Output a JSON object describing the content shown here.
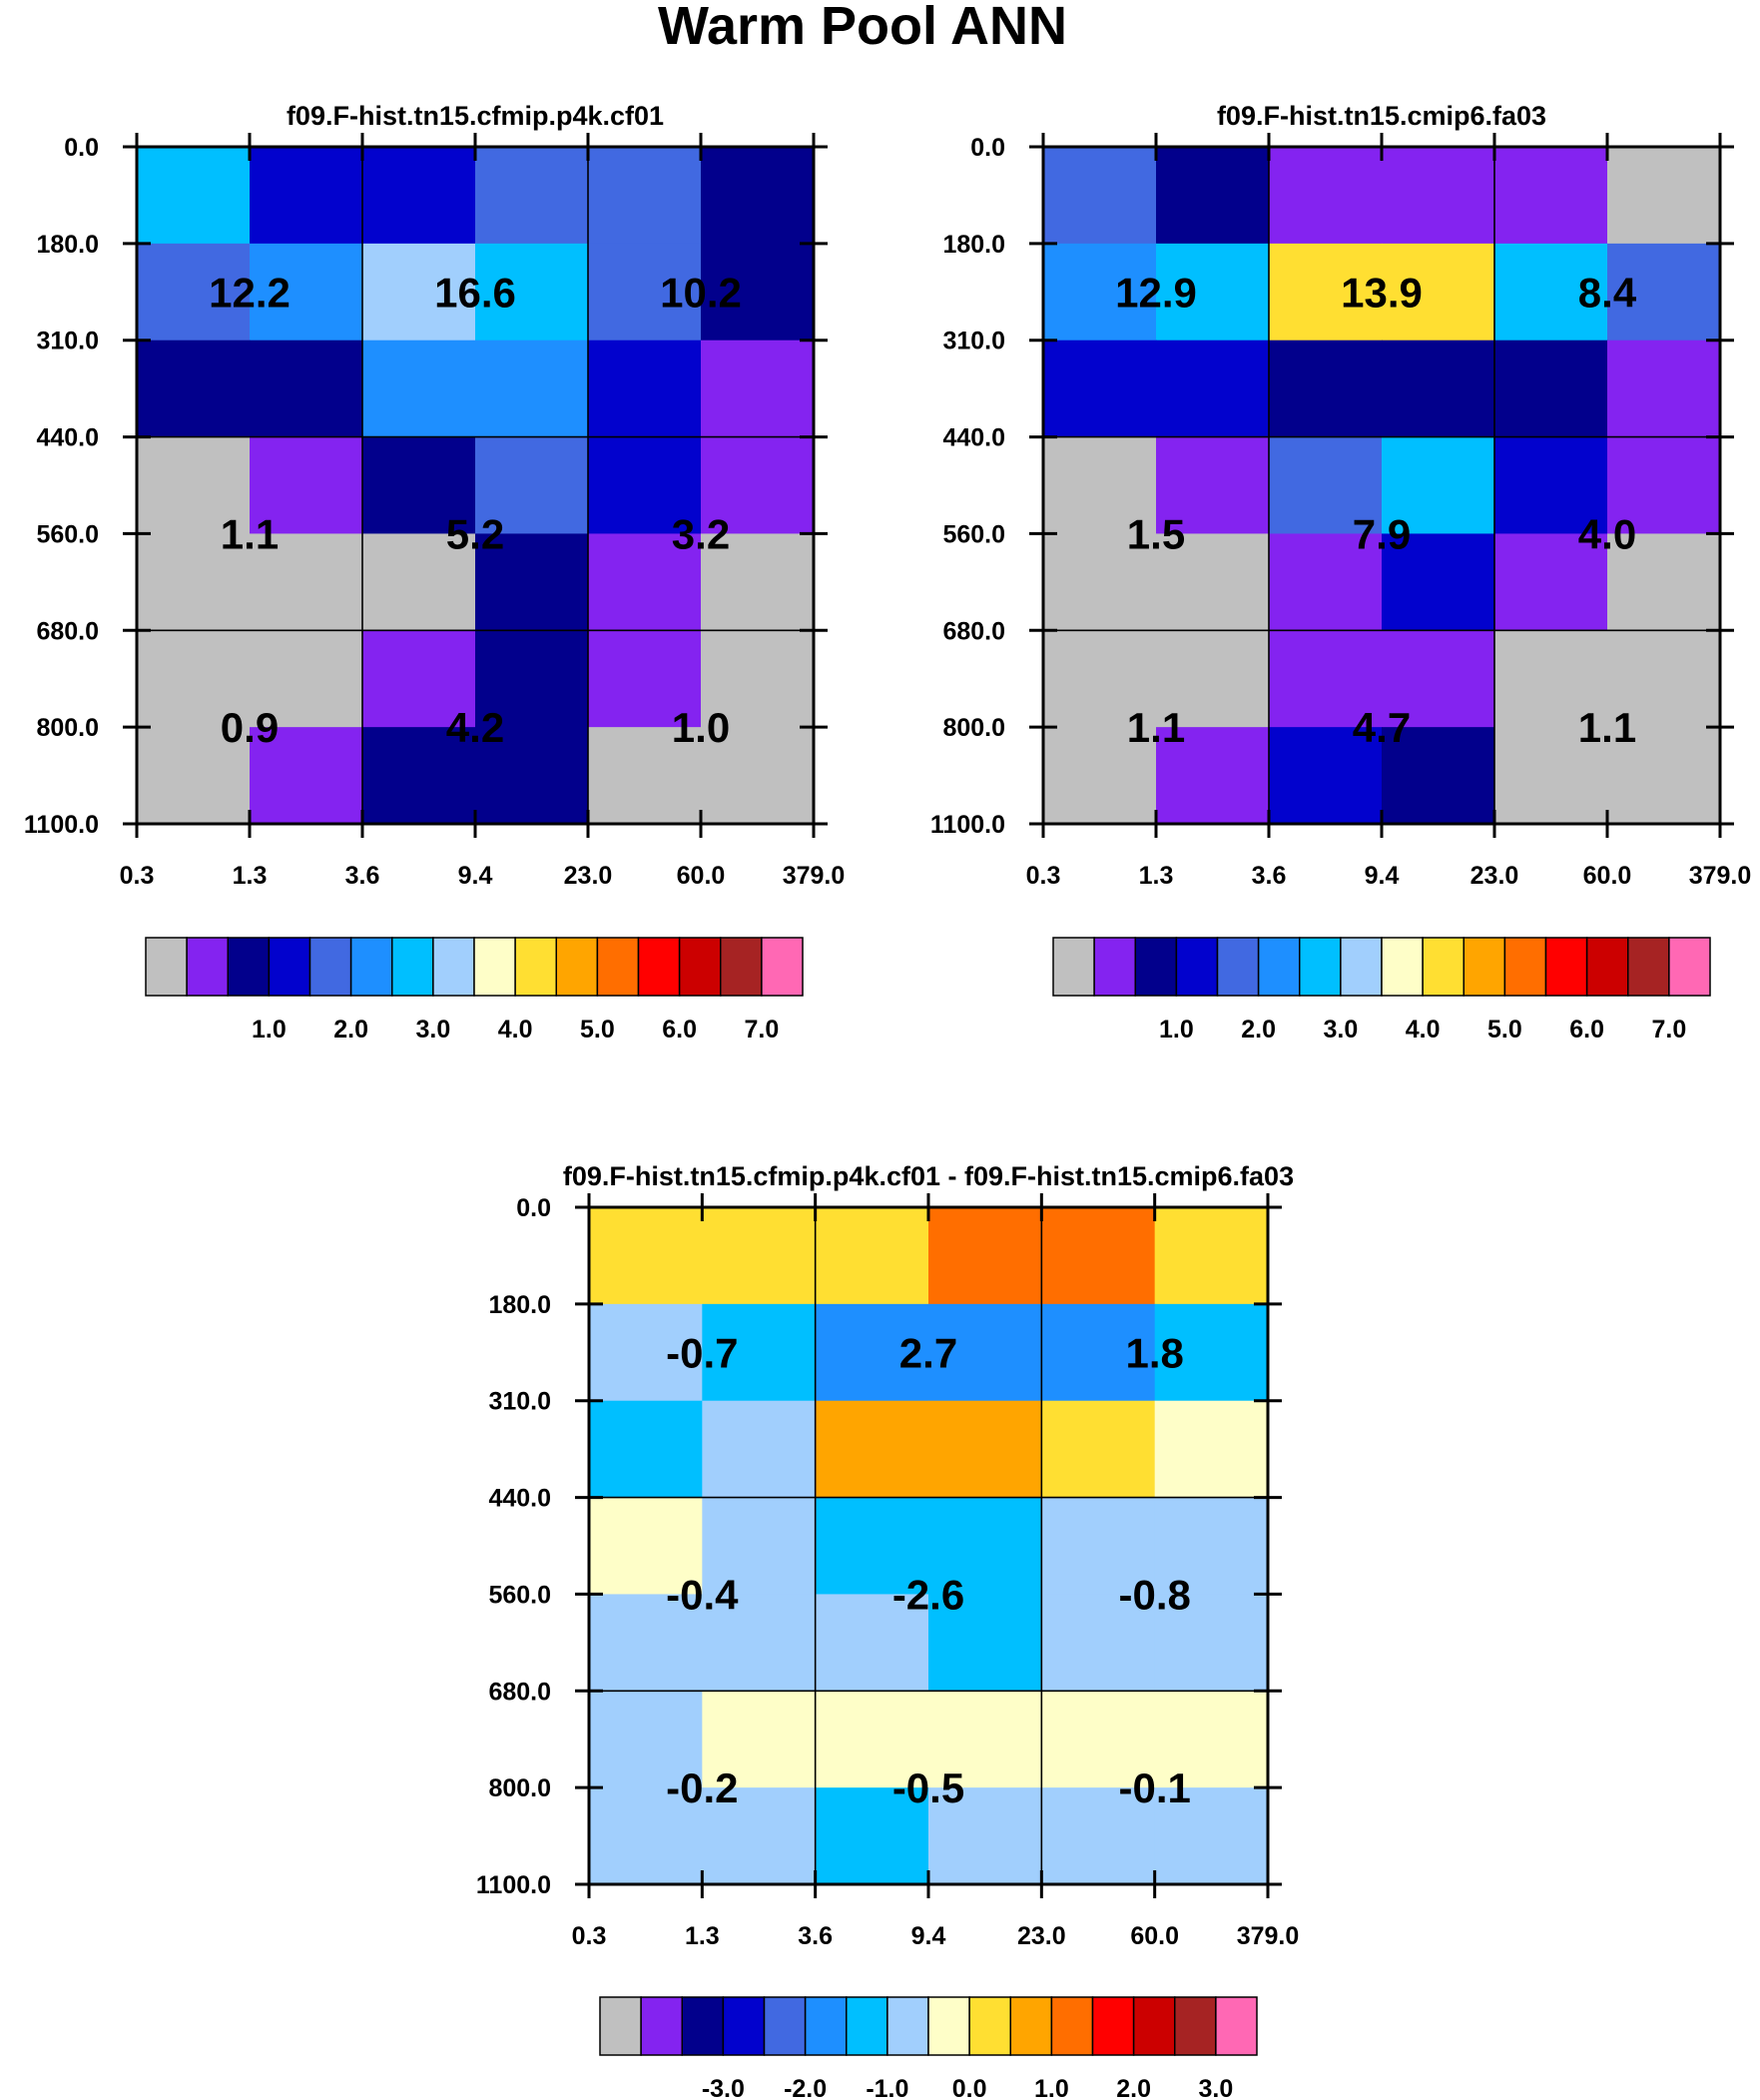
{
  "figure_title": "Warm Pool ANN",
  "colors": {
    "abs": [
      "#c0c0c0",
      "#8423f0",
      "#02008c",
      "#0202cd",
      "#4169e1",
      "#1e8fff",
      "#00bfff",
      "#a1cffd",
      "#fefec8",
      "#ffdf32",
      "#ffa500",
      "#ff6e00",
      "#ff0000",
      "#cc0000",
      "#a62323",
      "#ff68b4"
    ],
    "diff": [
      "#c0c0c0",
      "#8423f0",
      "#02008c",
      "#0202cd",
      "#4169e1",
      "#1e8fff",
      "#00bfff",
      "#a1cffd",
      "#fefec8",
      "#ffdf32",
      "#ffa500",
      "#ff6e00",
      "#ff0000",
      "#cc0000",
      "#a62323",
      "#ff68b4"
    ]
  },
  "chart_data": [
    {
      "type": "heatmap",
      "title": "f09.F-hist.tn15.cfmip.p4k.cf01",
      "x_ticks": [
        "0.3",
        "1.3",
        "3.6",
        "9.4",
        "23.0",
        "60.0",
        "379.0"
      ],
      "y_ticks": [
        "0.0",
        "180.0",
        "310.0",
        "440.0",
        "560.0",
        "680.0",
        "800.0",
        "1100.0"
      ],
      "cell_color_index": [
        [
          6,
          3,
          3,
          4,
          4,
          2
        ],
        [
          4,
          5,
          7,
          6,
          4,
          2
        ],
        [
          2,
          2,
          5,
          5,
          3,
          1
        ],
        [
          0,
          1,
          2,
          4,
          3,
          1
        ],
        [
          0,
          0,
          0,
          2,
          1,
          0
        ],
        [
          0,
          0,
          1,
          2,
          1,
          0
        ],
        [
          0,
          1,
          2,
          2,
          0,
          0
        ]
      ],
      "group_labels": [
        [
          "12.2",
          "16.6",
          "10.2"
        ],
        [
          "1.1",
          "5.2",
          "3.2"
        ],
        [
          "0.9",
          "4.2",
          "1.0"
        ]
      ],
      "colorbar_labels": [
        "1.0",
        "2.0",
        "3.0",
        "4.0",
        "5.0",
        "6.0",
        "7.0"
      ]
    },
    {
      "type": "heatmap",
      "title": "f09.F-hist.tn15.cmip6.fa03",
      "x_ticks": [
        "0.3",
        "1.3",
        "3.6",
        "9.4",
        "23.0",
        "60.0",
        "379.0"
      ],
      "y_ticks": [
        "0.0",
        "180.0",
        "310.0",
        "440.0",
        "560.0",
        "680.0",
        "800.0",
        "1100.0"
      ],
      "cell_color_index": [
        [
          4,
          2,
          1,
          1,
          1,
          0
        ],
        [
          5,
          6,
          9,
          9,
          6,
          4
        ],
        [
          3,
          3,
          2,
          2,
          2,
          1
        ],
        [
          0,
          1,
          4,
          6,
          3,
          1
        ],
        [
          0,
          0,
          1,
          3,
          1,
          0
        ],
        [
          0,
          0,
          1,
          1,
          0,
          0
        ],
        [
          0,
          1,
          3,
          2,
          0,
          0
        ]
      ],
      "group_labels": [
        [
          "12.9",
          "13.9",
          "8.4"
        ],
        [
          "1.5",
          "7.9",
          "4.0"
        ],
        [
          "1.1",
          "4.7",
          "1.1"
        ]
      ],
      "colorbar_labels": [
        "1.0",
        "2.0",
        "3.0",
        "4.0",
        "5.0",
        "6.0",
        "7.0"
      ]
    },
    {
      "type": "heatmap",
      "title": "f09.F-hist.tn15.cfmip.p4k.cf01 - f09.F-hist.tn15.cmip6.fa03",
      "x_ticks": [
        "0.3",
        "1.3",
        "3.6",
        "9.4",
        "23.0",
        "60.0",
        "379.0"
      ],
      "y_ticks": [
        "0.0",
        "180.0",
        "310.0",
        "440.0",
        "560.0",
        "680.0",
        "800.0",
        "1100.0"
      ],
      "cell_color_index": [
        [
          9,
          9,
          9,
          11,
          11,
          9
        ],
        [
          7,
          6,
          5,
          5,
          5,
          6
        ],
        [
          6,
          7,
          10,
          10,
          9,
          8
        ],
        [
          8,
          7,
          6,
          6,
          7,
          7
        ],
        [
          7,
          7,
          7,
          6,
          7,
          7
        ],
        [
          7,
          8,
          8,
          8,
          8,
          8
        ],
        [
          7,
          7,
          6,
          7,
          7,
          7
        ]
      ],
      "group_labels": [
        [
          "-0.7",
          "2.7",
          "1.8"
        ],
        [
          "-0.4",
          "-2.6",
          "-0.8"
        ],
        [
          "-0.2",
          "-0.5",
          "-0.1"
        ]
      ],
      "colorbar_labels": [
        "-3.0",
        "-2.0",
        "-1.0",
        "0.0",
        "1.0",
        "2.0",
        "3.0"
      ]
    }
  ]
}
